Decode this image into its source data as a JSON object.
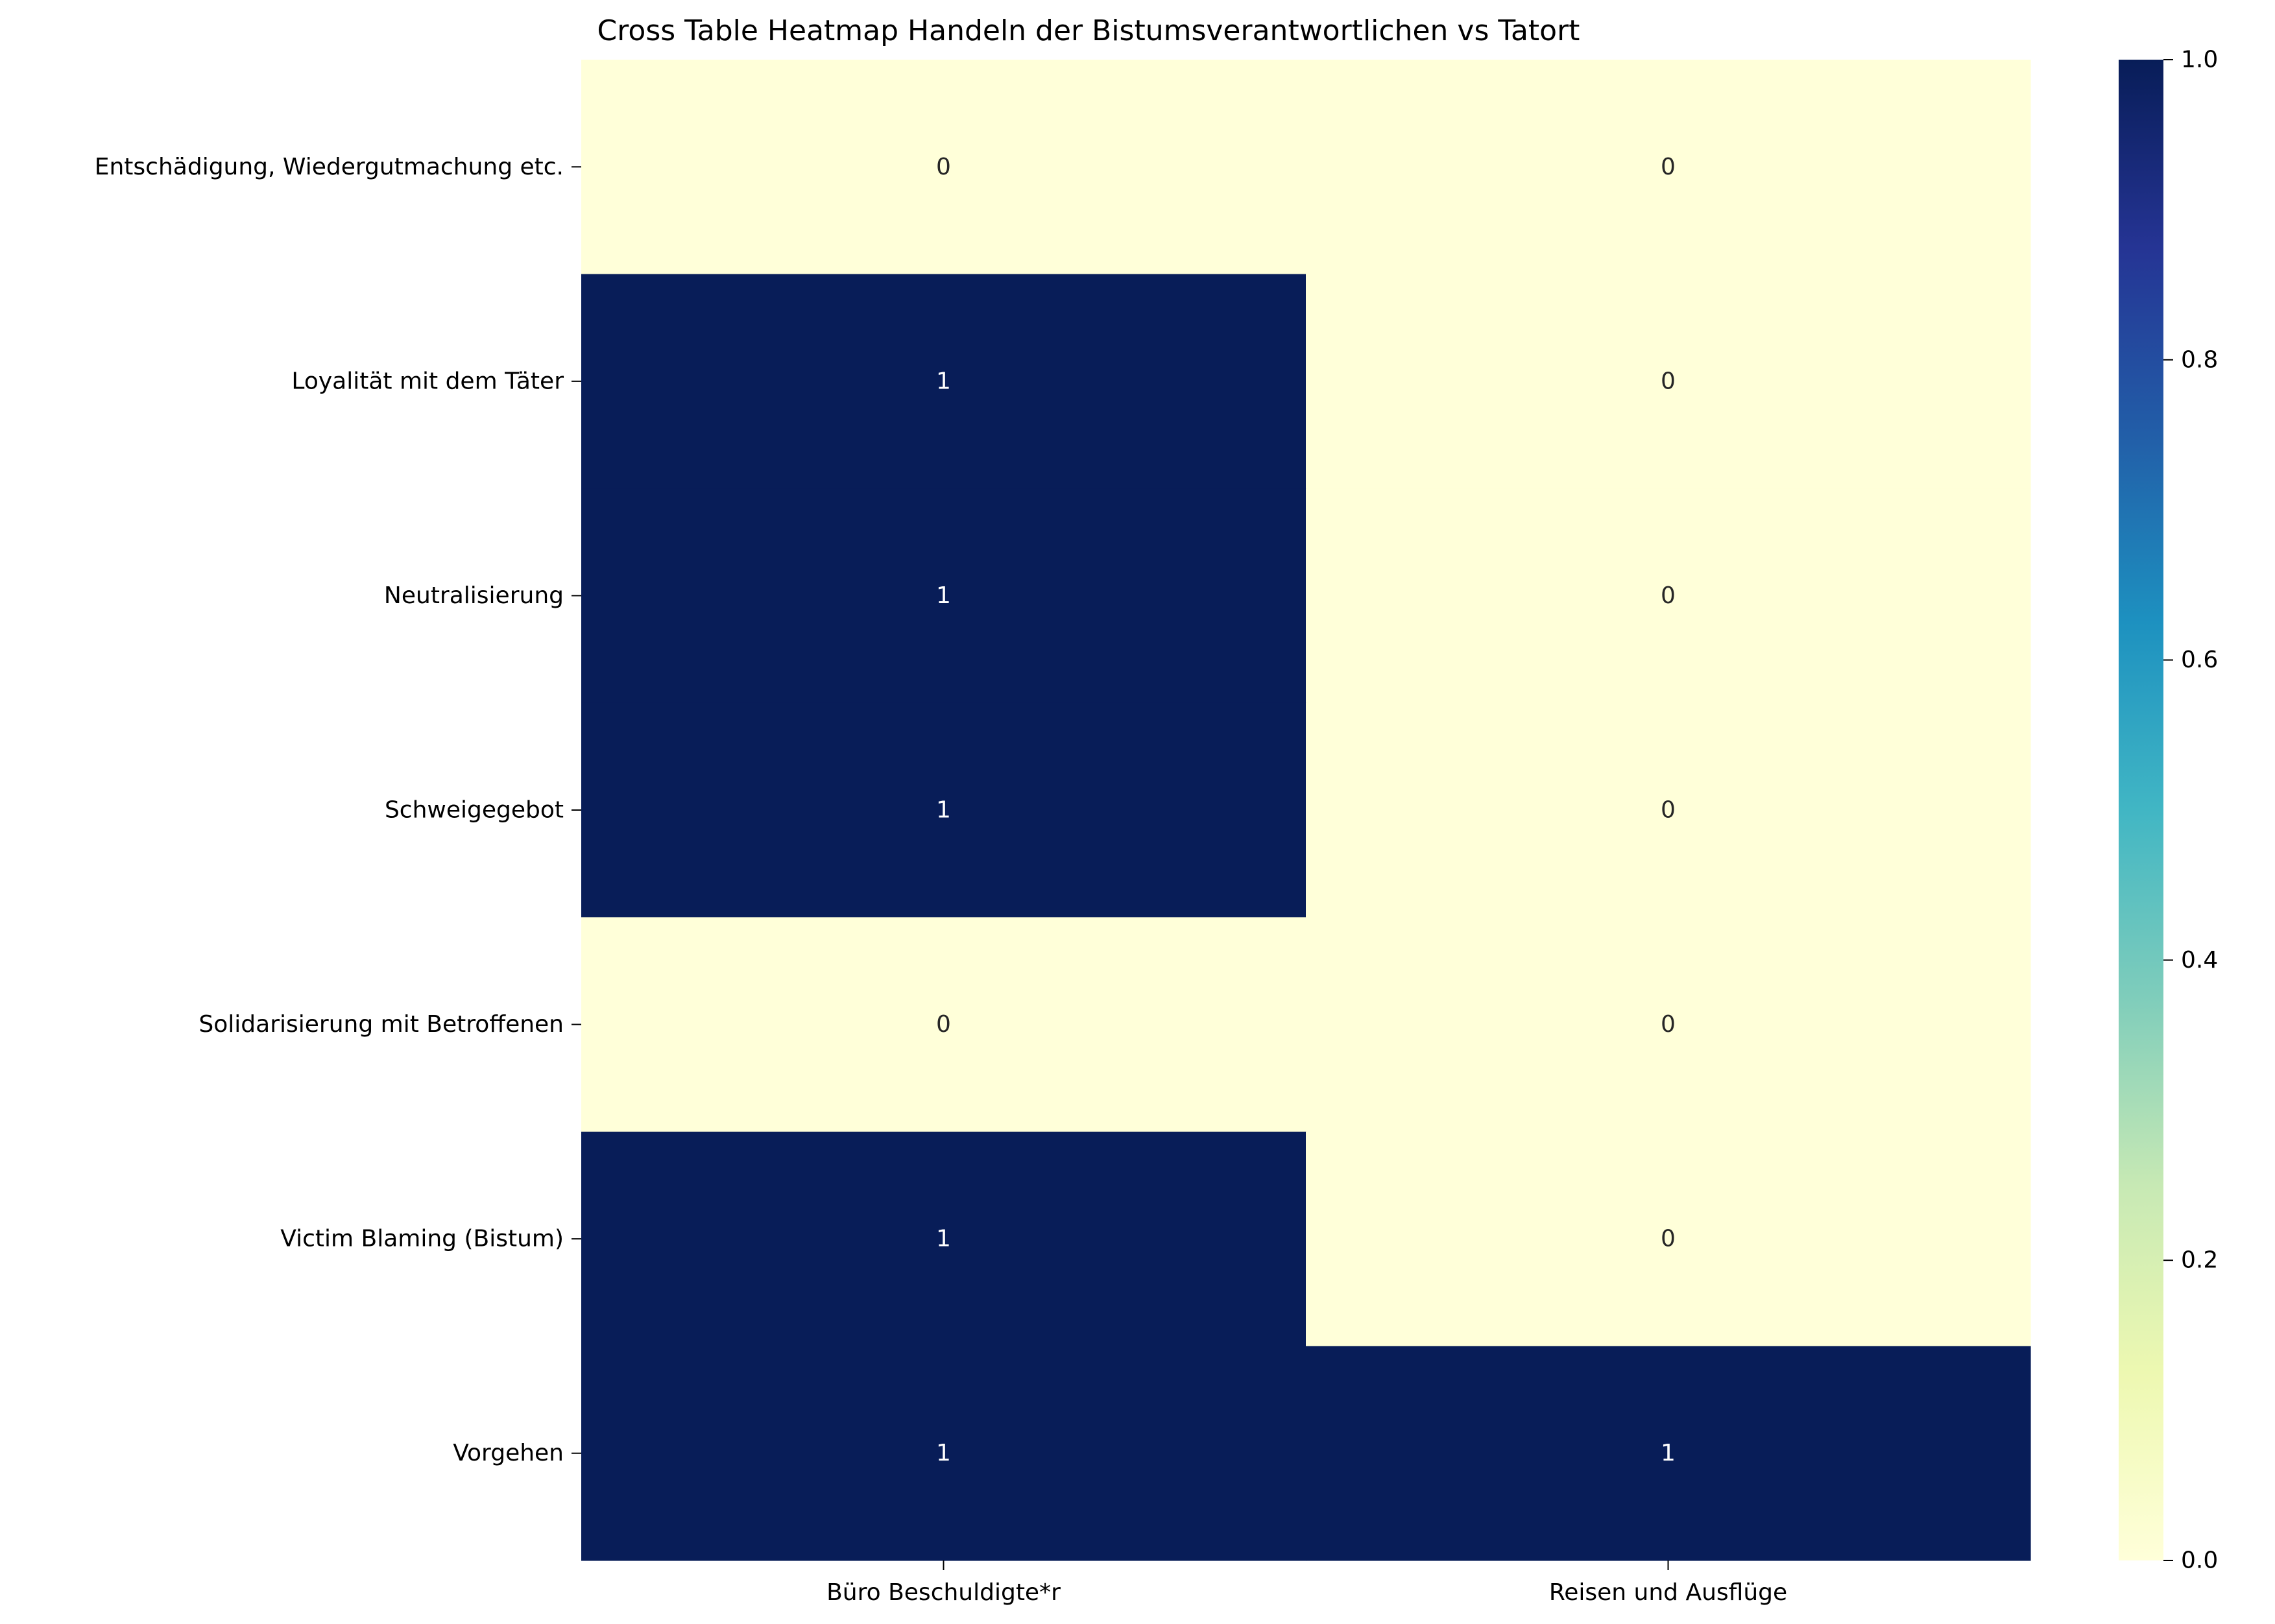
{
  "chart_data": {
    "type": "heatmap",
    "title": "Cross Table Heatmap Handeln der Bistumsverantwortlichen vs Tatort",
    "xlabel": "",
    "ylabel": "",
    "rows": [
      "Entschädigung, Wiedergutmachung etc.",
      "Loyalität mit dem Täter",
      "Neutralisierung",
      "Schweigegebot",
      "Solidarisierung mit Betroffenen",
      "Victim Blaming (Bistum)",
      "Vorgehen"
    ],
    "columns": [
      "Büro Beschuldigte*r",
      "Reisen und Ausflüge"
    ],
    "values": [
      [
        0,
        0
      ],
      [
        1,
        0
      ],
      [
        1,
        0
      ],
      [
        1,
        0
      ],
      [
        0,
        0
      ],
      [
        1,
        0
      ],
      [
        1,
        1
      ]
    ],
    "colorbar": {
      "min": 0.0,
      "max": 1.0,
      "ticks": [
        "0.0",
        "0.2",
        "0.4",
        "0.6",
        "0.8",
        "1.0"
      ],
      "colormap": "YlGnBu",
      "stops": [
        "#ffffd9",
        "#edf8b1",
        "#c7e9b4",
        "#7fcdbb",
        "#41b6c4",
        "#1d91c0",
        "#225ea8",
        "#253494",
        "#081d58"
      ]
    },
    "annotation_colors": {
      "dark": "#262626",
      "light": "#ffffff"
    }
  }
}
